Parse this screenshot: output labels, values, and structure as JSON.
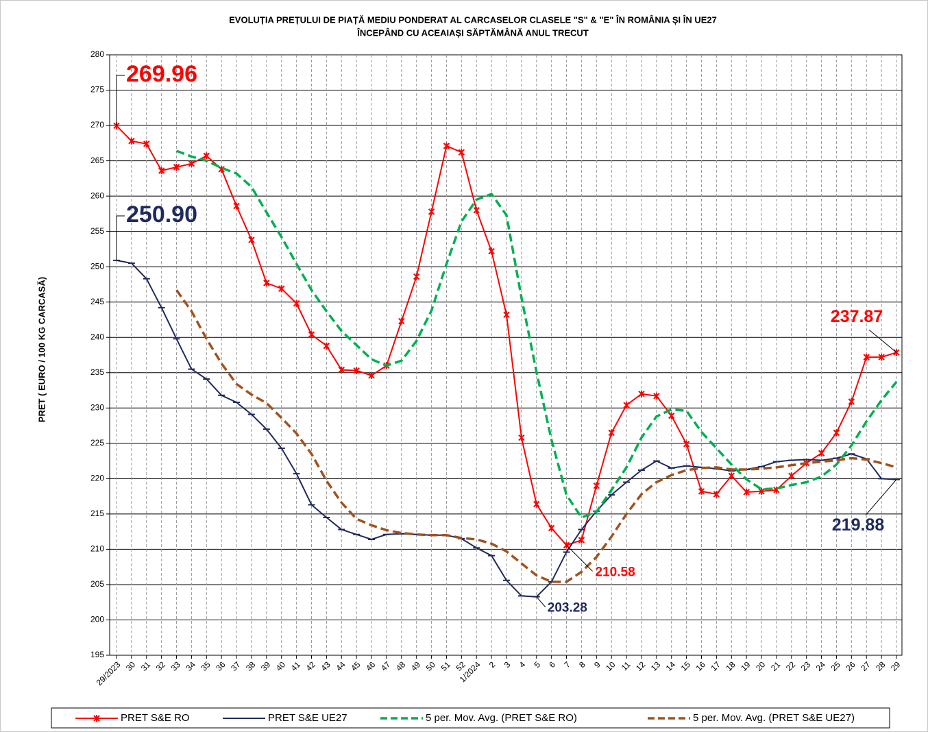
{
  "chart_data": {
    "type": "line",
    "title": [
      "EVOLUȚIA  PREȚULUI  DE  PIAȚĂ  MEDIU  PONDERAT  AL  CARCASELOR   CLASELE  \"S\" & \"E\"  ÎN ROMÂNIA   ȘI ÎN UE27",
      "ÎNCEPÂND  CU  ACEAIAȘI  SĂPTĂMÂNĂ  ANUL  TRECUT"
    ],
    "y_label": "PRET  ( EURO / 100 KG CARCASĂ)",
    "categories": [
      "29/2023",
      "30",
      "31",
      "32",
      "33",
      "34",
      "35",
      "36",
      "37",
      "38",
      "39",
      "40",
      "41",
      "42",
      "43",
      "44",
      "45",
      "46",
      "47",
      "48",
      "49",
      "50",
      "51",
      "52",
      "1/2024",
      "2",
      "3",
      "4",
      "5",
      "6",
      "7",
      "8",
      "9",
      "10",
      "11",
      "12",
      "13",
      "14",
      "15",
      "16",
      "17",
      "18",
      "19",
      "20",
      "21",
      "22",
      "23",
      "24",
      "25",
      "26",
      "27",
      "28",
      "29"
    ],
    "ylim": [
      195,
      280
    ],
    "yticks": [
      195,
      200,
      205,
      210,
      215,
      220,
      225,
      230,
      235,
      240,
      245,
      250,
      255,
      260,
      265,
      270,
      275,
      280
    ],
    "grid": true,
    "legend": "bottom",
    "series": [
      {
        "name": "PRET S&E RO",
        "color": "#ff0000",
        "marker": "star",
        "dash": "solid",
        "values": [
          269.96,
          267.8,
          267.4,
          263.6,
          264.1,
          264.6,
          265.7,
          263.8,
          258.6,
          253.8,
          247.7,
          246.9,
          244.8,
          240.4,
          238.8,
          235.4,
          235.3,
          234.6,
          236.0,
          242.3,
          248.6,
          257.8,
          267.1,
          266.2,
          258.0,
          252.2,
          243.2,
          225.8,
          216.4,
          213.0,
          210.58,
          211.3,
          219.0,
          226.5,
          230.4,
          232.0,
          231.7,
          228.9,
          224.9,
          218.2,
          217.8,
          220.4,
          218.1,
          218.2,
          218.4,
          220.4,
          222.2,
          223.6,
          226.5,
          230.9,
          237.2,
          237.2,
          237.87
        ],
        "value_labels": [
          "269.96",
          null,
          null,
          null,
          null,
          null,
          null,
          null,
          null,
          null,
          null,
          null,
          null,
          null,
          null,
          null,
          null,
          null,
          null,
          null,
          null,
          null,
          null,
          null,
          null,
          null,
          null,
          null,
          null,
          null,
          "210.58",
          null,
          null,
          null,
          null,
          null,
          null,
          null,
          null,
          null,
          null,
          null,
          null,
          null,
          null,
          null,
          null,
          null,
          null,
          null,
          null,
          null,
          "237.87"
        ]
      },
      {
        "name": "PRET S&E UE27",
        "color": "#1f2a5e",
        "marker": "dash",
        "dash": "solid",
        "values": [
          250.9,
          250.5,
          248.3,
          244.2,
          239.8,
          235.5,
          234.1,
          231.8,
          230.8,
          229.1,
          227.0,
          224.3,
          220.7,
          216.3,
          214.5,
          212.8,
          212.1,
          211.4,
          212.1,
          212.2,
          212.1,
          212.0,
          212.0,
          211.5,
          210.2,
          209.1,
          205.6,
          203.4,
          203.28,
          205.4,
          209.6,
          212.8,
          215.4,
          217.7,
          219.5,
          221.2,
          222.5,
          221.5,
          221.8,
          221.6,
          221.4,
          221.1,
          221.3,
          221.7,
          222.4,
          222.6,
          222.7,
          222.6,
          222.9,
          223.5,
          222.8,
          220.0,
          219.88
        ],
        "value_labels": [
          "250.90",
          null,
          null,
          null,
          null,
          null,
          null,
          null,
          null,
          null,
          null,
          null,
          null,
          null,
          null,
          null,
          null,
          null,
          null,
          null,
          null,
          null,
          null,
          null,
          null,
          null,
          null,
          null,
          "203.28",
          null,
          null,
          null,
          null,
          null,
          null,
          null,
          null,
          null,
          null,
          null,
          null,
          null,
          null,
          null,
          null,
          null,
          null,
          null,
          null,
          null,
          null,
          null,
          "219.88"
        ]
      },
      {
        "name": "5 per. Mov. Avg. (PRET S&E RO)",
        "color": "#00b050",
        "marker": "none",
        "dash": "dashed",
        "values": [
          null,
          null,
          null,
          null,
          266.4,
          265.6,
          265.0,
          264.0,
          263.2,
          261.3,
          257.7,
          254.2,
          250.4,
          246.7,
          243.7,
          240.9,
          238.9,
          236.9,
          236.0,
          236.7,
          239.5,
          243.8,
          250.4,
          256.4,
          259.5,
          260.3,
          257.3,
          245.6,
          235.1,
          225.5,
          217.7,
          214.5,
          215.3,
          218.4,
          221.6,
          225.8,
          228.8,
          229.8,
          229.6,
          226.6,
          224.3,
          222.0,
          219.9,
          218.5,
          218.6,
          219.1,
          219.5,
          220.3,
          222.0,
          224.7,
          228.1,
          231.1,
          233.7
        ]
      },
      {
        "name": "5 per. Mov. Avg. (PRET S&E UE27)",
        "color": "#a0521e",
        "marker": "none",
        "dash": "dashed",
        "values": [
          null,
          null,
          null,
          null,
          246.7,
          243.7,
          239.8,
          236.3,
          233.4,
          231.9,
          230.7,
          228.6,
          226.4,
          223.5,
          219.7,
          216.6,
          214.3,
          213.4,
          212.7,
          212.3,
          212.1,
          212.0,
          212.0,
          211.6,
          211.4,
          210.8,
          209.7,
          208.0,
          206.3,
          205.4,
          205.4,
          206.8,
          208.9,
          211.8,
          215.0,
          217.8,
          219.5,
          220.5,
          221.2,
          221.5,
          221.6,
          221.3,
          221.3,
          221.4,
          221.6,
          221.9,
          222.2,
          222.4,
          222.6,
          222.9,
          222.7,
          222.2,
          221.6
        ]
      }
    ]
  }
}
